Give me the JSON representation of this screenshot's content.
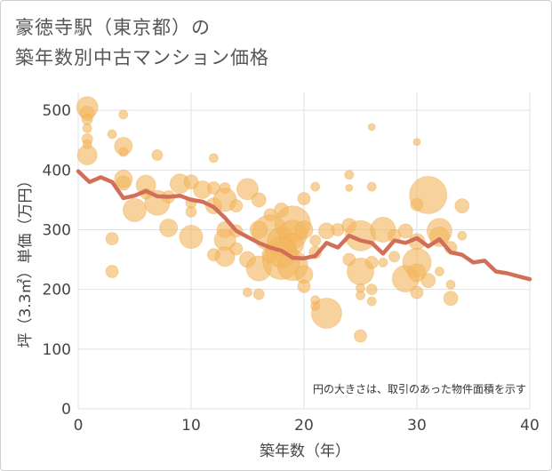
{
  "title_lines": [
    "豪徳寺駅（東京都）の",
    "築年数別中古マンション価格"
  ],
  "note": "円の大きさは、取引のあった物件面積を示す",
  "chart_data": {
    "type": "scatter",
    "xlabel": "築年数（年）",
    "ylabel": "坪（3.3㎡）単価（万円）",
    "xlim": [
      0,
      40
    ],
    "ylim": [
      0,
      530
    ],
    "xticks": [
      0,
      10,
      20,
      30,
      40
    ],
    "yticks": [
      0,
      100,
      200,
      300,
      400,
      500
    ],
    "grid": true,
    "colors": {
      "bubble": "#f3b75f",
      "bubble_stroke": "#e9a640",
      "line": "#d26f58",
      "grid": "#dde3ea",
      "axis_text": "#444444"
    },
    "points": [
      {
        "x": 0.8,
        "y": 505,
        "s": 12
      },
      {
        "x": 0.8,
        "y": 495,
        "s": 8
      },
      {
        "x": 0.8,
        "y": 485,
        "s": 6
      },
      {
        "x": 0.8,
        "y": 470,
        "s": 5
      },
      {
        "x": 0.8,
        "y": 452,
        "s": 6
      },
      {
        "x": 0.8,
        "y": 443,
        "s": 5
      },
      {
        "x": 0.8,
        "y": 425,
        "s": 11
      },
      {
        "x": 4,
        "y": 493,
        "s": 5
      },
      {
        "x": 3,
        "y": 460,
        "s": 5
      },
      {
        "x": 4,
        "y": 440,
        "s": 10
      },
      {
        "x": 4,
        "y": 430,
        "s": 5
      },
      {
        "x": 7,
        "y": 425,
        "s": 6
      },
      {
        "x": 12,
        "y": 420,
        "s": 5
      },
      {
        "x": 26,
        "y": 472,
        "s": 4
      },
      {
        "x": 30,
        "y": 447,
        "s": 4
      },
      {
        "x": 4,
        "y": 385,
        "s": 10
      },
      {
        "x": 4,
        "y": 378,
        "s": 8
      },
      {
        "x": 6,
        "y": 375,
        "s": 11
      },
      {
        "x": 6,
        "y": 360,
        "s": 6
      },
      {
        "x": 9,
        "y": 377,
        "s": 11
      },
      {
        "x": 10,
        "y": 380,
        "s": 8
      },
      {
        "x": 11,
        "y": 367,
        "s": 10
      },
      {
        "x": 12,
        "y": 370,
        "s": 7
      },
      {
        "x": 13,
        "y": 370,
        "s": 6
      },
      {
        "x": 15,
        "y": 368,
        "s": 12
      },
      {
        "x": 21,
        "y": 372,
        "s": 5
      },
      {
        "x": 24,
        "y": 392,
        "s": 5
      },
      {
        "x": 26,
        "y": 372,
        "s": 5
      },
      {
        "x": 24,
        "y": 370,
        "s": 4
      },
      {
        "x": 5,
        "y": 333,
        "s": 13
      },
      {
        "x": 7,
        "y": 345,
        "s": 14
      },
      {
        "x": 8,
        "y": 355,
        "s": 7
      },
      {
        "x": 10,
        "y": 330,
        "s": 6
      },
      {
        "x": 10,
        "y": 345,
        "s": 6
      },
      {
        "x": 12,
        "y": 340,
        "s": 9
      },
      {
        "x": 13,
        "y": 350,
        "s": 13
      },
      {
        "x": 14,
        "y": 340,
        "s": 7
      },
      {
        "x": 16,
        "y": 350,
        "s": 8
      },
      {
        "x": 17,
        "y": 325,
        "s": 7
      },
      {
        "x": 18,
        "y": 333,
        "s": 8
      },
      {
        "x": 20,
        "y": 352,
        "s": 7
      },
      {
        "x": 30,
        "y": 342,
        "s": 7
      },
      {
        "x": 31,
        "y": 358,
        "s": 21
      },
      {
        "x": 34,
        "y": 340,
        "s": 8
      },
      {
        "x": 8,
        "y": 303,
        "s": 10
      },
      {
        "x": 10,
        "y": 288,
        "s": 13
      },
      {
        "x": 3,
        "y": 285,
        "s": 7
      },
      {
        "x": 13,
        "y": 300,
        "s": 9
      },
      {
        "x": 13,
        "y": 283,
        "s": 12
      },
      {
        "x": 14,
        "y": 298,
        "s": 7
      },
      {
        "x": 16,
        "y": 300,
        "s": 10
      },
      {
        "x": 17,
        "y": 295,
        "s": 20
      },
      {
        "x": 18,
        "y": 280,
        "s": 16
      },
      {
        "x": 19,
        "y": 310,
        "s": 20
      },
      {
        "x": 19,
        "y": 292,
        "s": 16
      },
      {
        "x": 19,
        "y": 275,
        "s": 12
      },
      {
        "x": 20,
        "y": 300,
        "s": 10
      },
      {
        "x": 21,
        "y": 282,
        "s": 6
      },
      {
        "x": 22,
        "y": 298,
        "s": 9
      },
      {
        "x": 23,
        "y": 300,
        "s": 7
      },
      {
        "x": 24,
        "y": 307,
        "s": 8
      },
      {
        "x": 25,
        "y": 290,
        "s": 17
      },
      {
        "x": 27,
        "y": 300,
        "s": 14
      },
      {
        "x": 28,
        "y": 290,
        "s": 7
      },
      {
        "x": 29,
        "y": 298,
        "s": 8
      },
      {
        "x": 30,
        "y": 280,
        "s": 9
      },
      {
        "x": 32,
        "y": 298,
        "s": 14
      },
      {
        "x": 32,
        "y": 288,
        "s": 11
      },
      {
        "x": 33,
        "y": 270,
        "s": 7
      },
      {
        "x": 34,
        "y": 290,
        "s": 5
      },
      {
        "x": 12,
        "y": 258,
        "s": 7
      },
      {
        "x": 13,
        "y": 255,
        "s": 11
      },
      {
        "x": 14,
        "y": 268,
        "s": 7
      },
      {
        "x": 15,
        "y": 250,
        "s": 9
      },
      {
        "x": 16,
        "y": 235,
        "s": 14
      },
      {
        "x": 17,
        "y": 258,
        "s": 9
      },
      {
        "x": 18,
        "y": 248,
        "s": 21
      },
      {
        "x": 18,
        "y": 262,
        "s": 17
      },
      {
        "x": 19,
        "y": 240,
        "s": 17
      },
      {
        "x": 20,
        "y": 225,
        "s": 10
      },
      {
        "x": 21,
        "y": 262,
        "s": 7
      },
      {
        "x": 24,
        "y": 250,
        "s": 7
      },
      {
        "x": 25,
        "y": 230,
        "s": 15
      },
      {
        "x": 26,
        "y": 245,
        "s": 7
      },
      {
        "x": 27,
        "y": 245,
        "s": 5
      },
      {
        "x": 28,
        "y": 255,
        "s": 6
      },
      {
        "x": 29,
        "y": 218,
        "s": 15
      },
      {
        "x": 30,
        "y": 245,
        "s": 16
      },
      {
        "x": 30,
        "y": 228,
        "s": 10
      },
      {
        "x": 31,
        "y": 215,
        "s": 8
      },
      {
        "x": 32,
        "y": 230,
        "s": 5
      },
      {
        "x": 3,
        "y": 230,
        "s": 7
      },
      {
        "x": 15,
        "y": 195,
        "s": 5
      },
      {
        "x": 16,
        "y": 192,
        "s": 6
      },
      {
        "x": 20,
        "y": 205,
        "s": 7
      },
      {
        "x": 21,
        "y": 182,
        "s": 5
      },
      {
        "x": 21,
        "y": 172,
        "s": 5
      },
      {
        "x": 22,
        "y": 160,
        "s": 17
      },
      {
        "x": 25,
        "y": 202,
        "s": 5
      },
      {
        "x": 25,
        "y": 190,
        "s": 5
      },
      {
        "x": 26,
        "y": 180,
        "s": 5
      },
      {
        "x": 26,
        "y": 200,
        "s": 6
      },
      {
        "x": 30,
        "y": 195,
        "s": 7
      },
      {
        "x": 33,
        "y": 208,
        "s": 5
      },
      {
        "x": 33,
        "y": 185,
        "s": 8
      },
      {
        "x": 25,
        "y": 122,
        "s": 7
      }
    ],
    "trend": [
      [
        0,
        398
      ],
      [
        1,
        380
      ],
      [
        2,
        388
      ],
      [
        3,
        380
      ],
      [
        4,
        353
      ],
      [
        5,
        357
      ],
      [
        6,
        365
      ],
      [
        7,
        356
      ],
      [
        8,
        355
      ],
      [
        9,
        357
      ],
      [
        10,
        350
      ],
      [
        11,
        347
      ],
      [
        12,
        338
      ],
      [
        13,
        320
      ],
      [
        14,
        298
      ],
      [
        15,
        288
      ],
      [
        16,
        278
      ],
      [
        17,
        270
      ],
      [
        18,
        265
      ],
      [
        19,
        253
      ],
      [
        20,
        252
      ],
      [
        21,
        256
      ],
      [
        22,
        278
      ],
      [
        23,
        270
      ],
      [
        24,
        290
      ],
      [
        25,
        282
      ],
      [
        26,
        278
      ],
      [
        27,
        260
      ],
      [
        28,
        282
      ],
      [
        29,
        278
      ],
      [
        30,
        286
      ],
      [
        31,
        272
      ],
      [
        32,
        284
      ],
      [
        33,
        262
      ],
      [
        34,
        258
      ],
      [
        35,
        245
      ],
      [
        36,
        248
      ],
      [
        37,
        230
      ],
      [
        38,
        227
      ],
      [
        39,
        222
      ],
      [
        40,
        217
      ]
    ]
  }
}
